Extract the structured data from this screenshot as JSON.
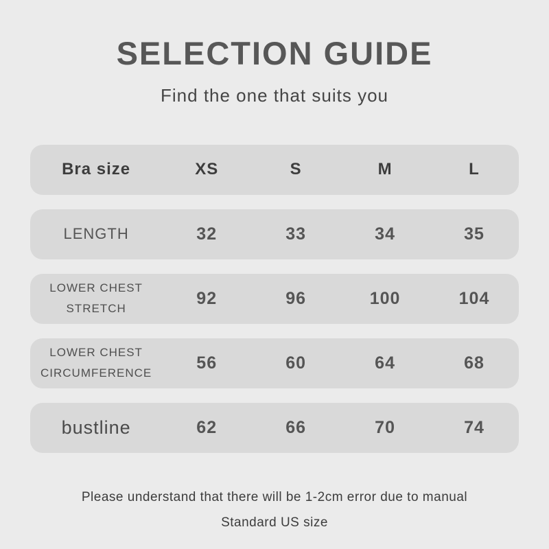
{
  "header": {
    "title": "SELECTION GUIDE",
    "subtitle": "Find the one that suits you"
  },
  "colors": {
    "page_bg": "#ebebeb",
    "row_bg": "#d9d9d9",
    "title_text": "#575757",
    "body_text": "#4c4c4c"
  },
  "chart_data": {
    "type": "table",
    "title": "SELECTION GUIDE",
    "subtitle": "Find the one that suits you",
    "columns": [
      "Bra size",
      "XS",
      "S",
      "M",
      "L"
    ],
    "rows": [
      {
        "label": "LENGTH",
        "values": [
          "32",
          "33",
          "34",
          "35"
        ]
      },
      {
        "label": "LOWER CHEST\nSTRETCH",
        "values": [
          "92",
          "96",
          "100",
          "104"
        ]
      },
      {
        "label": "LOWER CHEST\nCIRCUMFERENCE",
        "values": [
          "56",
          "60",
          "64",
          "68"
        ]
      },
      {
        "label": "bustline",
        "values": [
          "62",
          "66",
          "70",
          "74"
        ]
      }
    ]
  },
  "footer": {
    "line1": "Please understand that there will be 1-2cm error due to manual",
    "line2": "Standard US size"
  }
}
